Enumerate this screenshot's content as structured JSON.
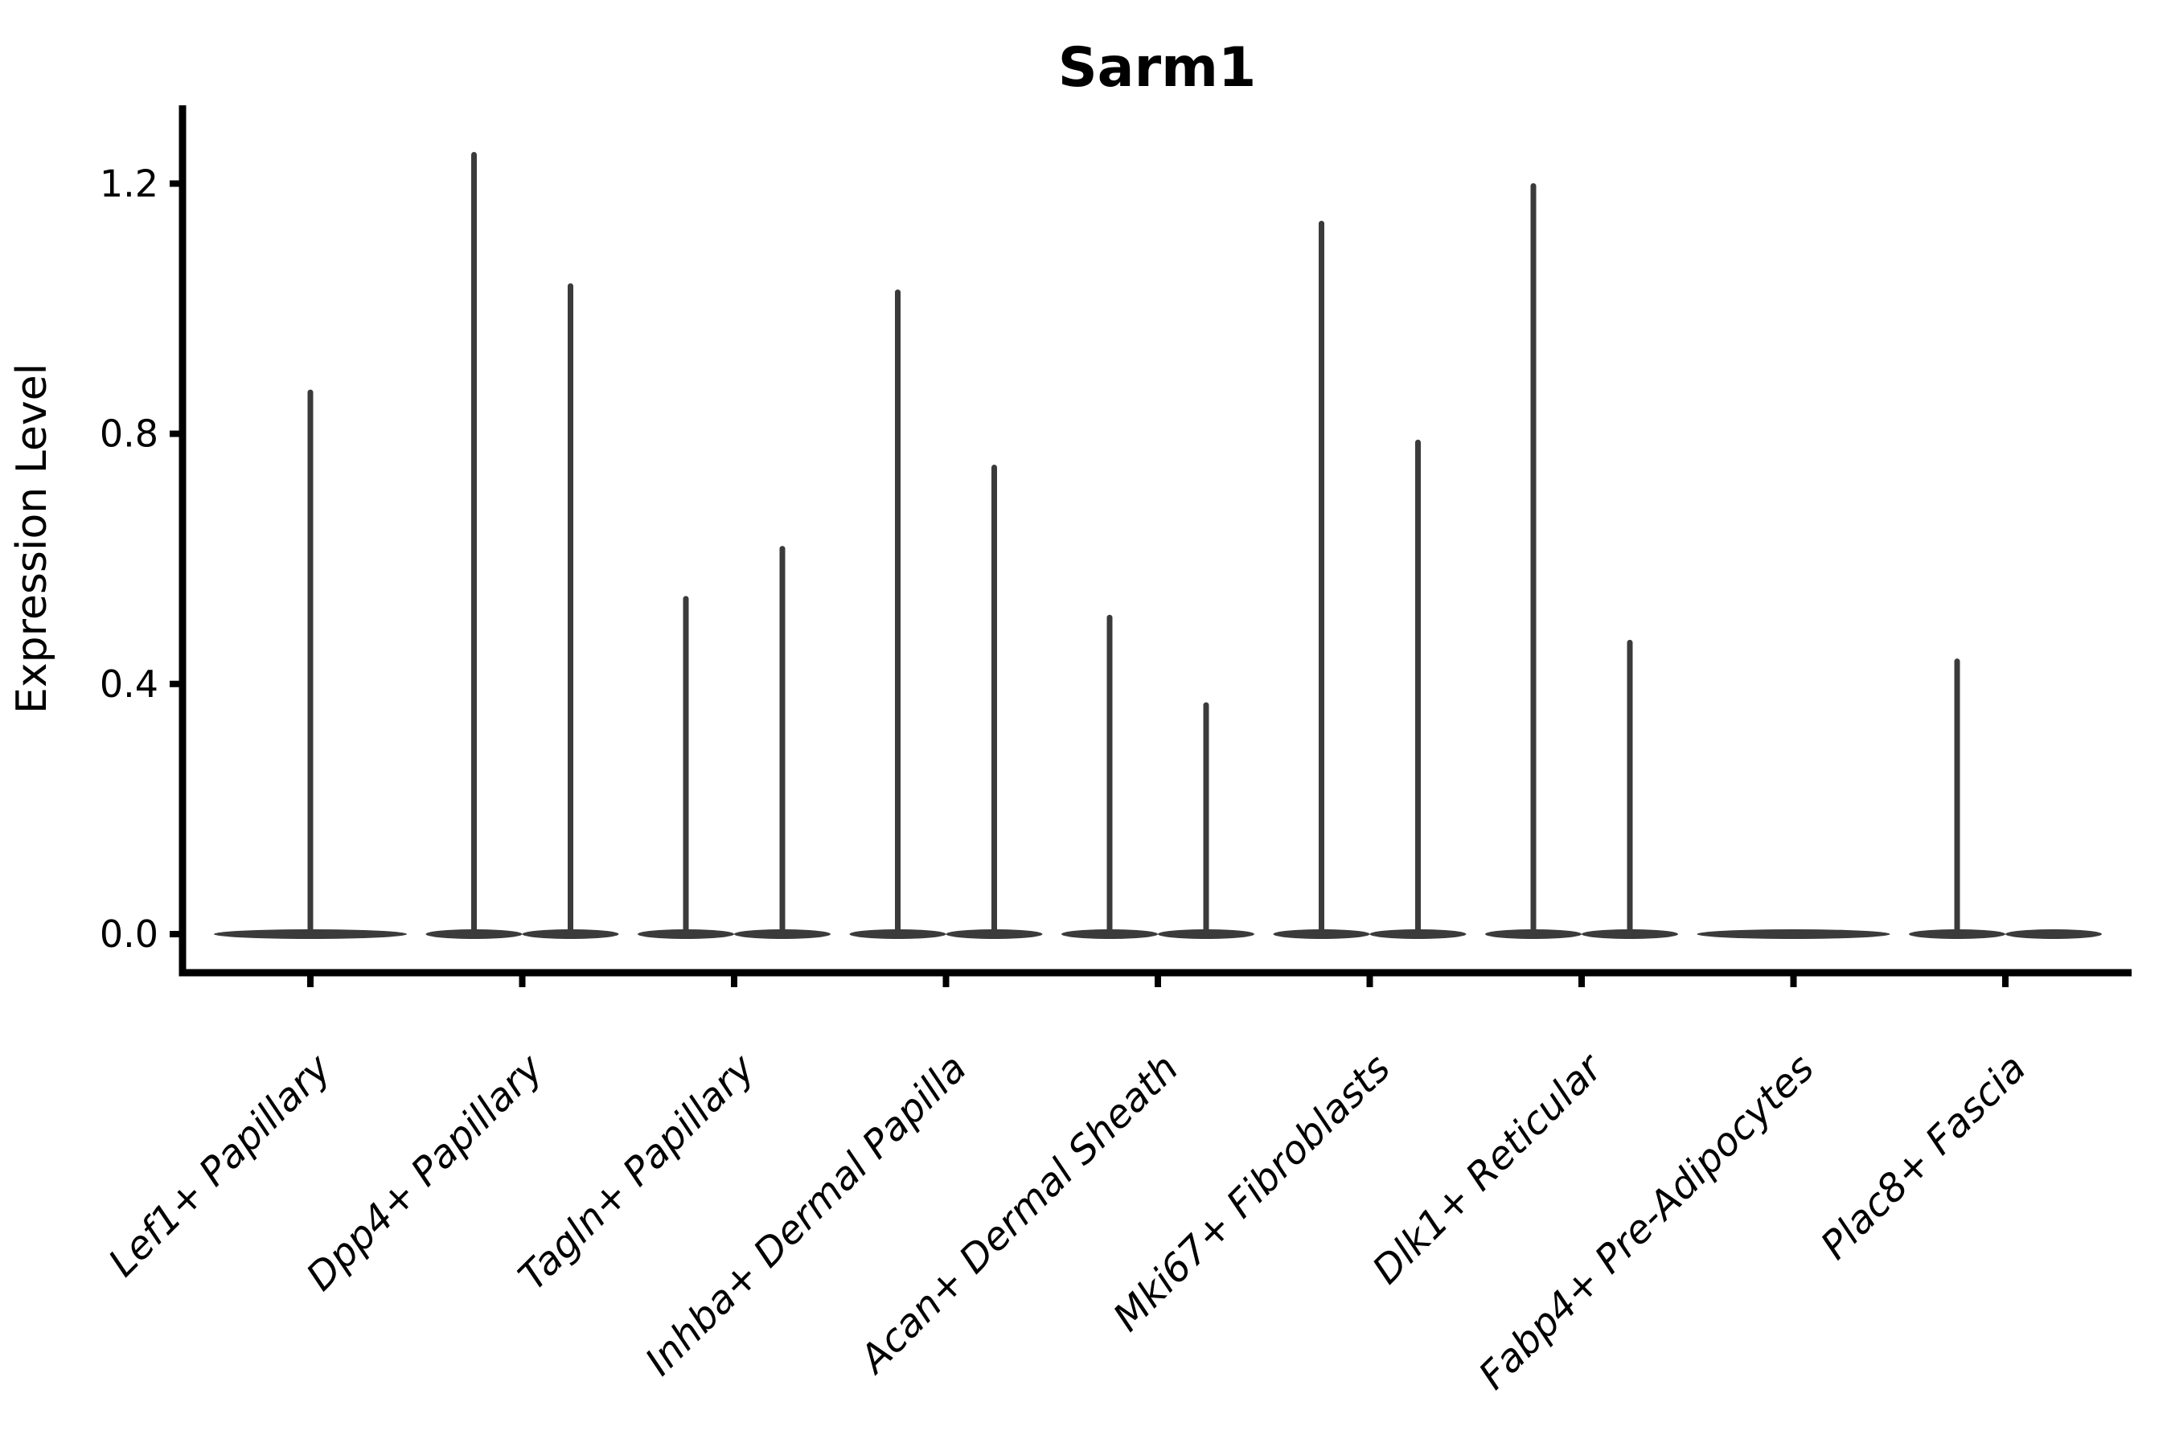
{
  "chart_data": {
    "type": "violin",
    "title": "Sarm1",
    "xlabel": "",
    "ylabel": "Expression Level",
    "categories": [
      "Lef1+ Papillary",
      "Dpp4+ Papillary",
      "Tagln+ Papillary",
      "Inhba+ Dermal Papilla",
      "Acan+ Dermal Sheath",
      "Mki67+ Fibroblasts",
      "Dlk1+ Reticular",
      "Fabp4+ Pre-Adipocytes",
      "Plac8+ Fascia"
    ],
    "ylim": [
      0,
      1.32
    ],
    "ytick_labels": [
      "0.0",
      "0.4",
      "0.8",
      "1.2"
    ],
    "ytick_values": [
      0,
      0.4,
      0.8,
      1.2
    ],
    "grid": false,
    "legend": "none",
    "violin_color": "#3b3b3b",
    "axis_color": "#000000",
    "baseline_value": 0.0,
    "violins": [
      {
        "category": "Lef1+ Papillary",
        "slot": "center",
        "peak": 0.87
      },
      {
        "category": "Dpp4+ Papillary",
        "slot": "left",
        "peak": 1.25
      },
      {
        "category": "Dpp4+ Papillary",
        "slot": "right",
        "peak": 1.04
      },
      {
        "category": "Tagln+ Papillary",
        "slot": "left",
        "peak": 0.54
      },
      {
        "category": "Tagln+ Papillary",
        "slot": "right",
        "peak": 0.62
      },
      {
        "category": "Inhba+ Dermal Papilla",
        "slot": "left",
        "peak": 1.03
      },
      {
        "category": "Inhba+ Dermal Papilla",
        "slot": "right",
        "peak": 0.75
      },
      {
        "category": "Acan+ Dermal Sheath",
        "slot": "left",
        "peak": 0.51
      },
      {
        "category": "Acan+ Dermal Sheath",
        "slot": "right",
        "peak": 0.37
      },
      {
        "category": "Mki67+ Fibroblasts",
        "slot": "left",
        "peak": 1.14
      },
      {
        "category": "Mki67+ Fibroblasts",
        "slot": "right",
        "peak": 0.79
      },
      {
        "category": "Dlk1+ Reticular",
        "slot": "left",
        "peak": 1.2
      },
      {
        "category": "Dlk1+ Reticular",
        "slot": "right",
        "peak": 0.47
      },
      {
        "category": "Fabp4+ Pre-Adipocytes",
        "slot": "center",
        "peak": 0.0
      },
      {
        "category": "Plac8+ Fascia",
        "slot": "left",
        "peak": 0.44
      },
      {
        "category": "Plac8+ Fascia",
        "slot": "right",
        "peak": 0.0
      }
    ]
  }
}
